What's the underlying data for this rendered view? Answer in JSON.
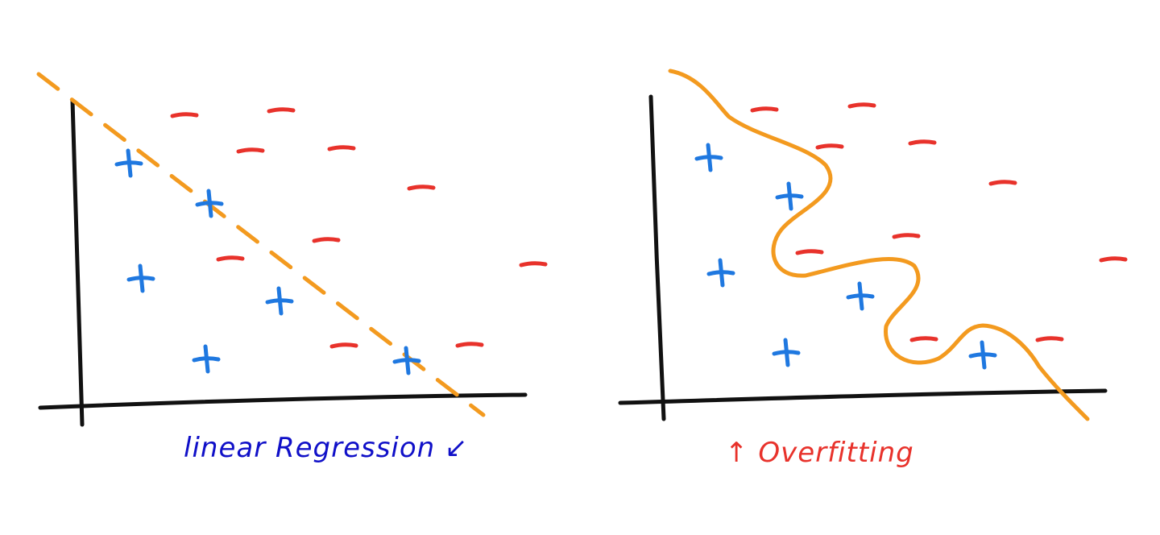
{
  "colors": {
    "positive": "#1f78e0",
    "negative": "#e8322b",
    "boundary": "#f39a1f",
    "axis": "#111111",
    "caption_left": "#1010c8",
    "caption_right": "#e8322b"
  },
  "panels": [
    {
      "id": "linear",
      "caption": "linear Regression",
      "caption_arrow": "↙",
      "boundary_style": "dashed-straight",
      "points": [
        {
          "sign": "+",
          "class": "positive"
        },
        {
          "sign": "+",
          "class": "positive"
        },
        {
          "sign": "+",
          "class": "positive"
        },
        {
          "sign": "+",
          "class": "positive"
        },
        {
          "sign": "+",
          "class": "positive"
        },
        {
          "sign": "+",
          "class": "positive"
        },
        {
          "sign": "−",
          "class": "negative"
        },
        {
          "sign": "−",
          "class": "negative"
        },
        {
          "sign": "−",
          "class": "negative"
        },
        {
          "sign": "−",
          "class": "negative"
        },
        {
          "sign": "−",
          "class": "negative"
        },
        {
          "sign": "−",
          "class": "negative"
        },
        {
          "sign": "−",
          "class": "negative"
        },
        {
          "sign": "−",
          "class": "negative"
        },
        {
          "sign": "−",
          "class": "negative"
        },
        {
          "sign": "−",
          "class": "negative"
        }
      ]
    },
    {
      "id": "overfit",
      "caption": "Overfitting",
      "caption_arrow": "↑",
      "boundary_style": "solid-wiggly",
      "points": [
        {
          "sign": "+",
          "class": "positive"
        },
        {
          "sign": "+",
          "class": "positive"
        },
        {
          "sign": "+",
          "class": "positive"
        },
        {
          "sign": "+",
          "class": "positive"
        },
        {
          "sign": "+",
          "class": "positive"
        },
        {
          "sign": "+",
          "class": "positive"
        },
        {
          "sign": "−",
          "class": "negative"
        },
        {
          "sign": "−",
          "class": "negative"
        },
        {
          "sign": "−",
          "class": "negative"
        },
        {
          "sign": "−",
          "class": "negative"
        },
        {
          "sign": "−",
          "class": "negative"
        },
        {
          "sign": "−",
          "class": "negative"
        },
        {
          "sign": "−",
          "class": "negative"
        },
        {
          "sign": "−",
          "class": "negative"
        },
        {
          "sign": "−",
          "class": "negative"
        },
        {
          "sign": "−",
          "class": "negative"
        }
      ]
    }
  ]
}
